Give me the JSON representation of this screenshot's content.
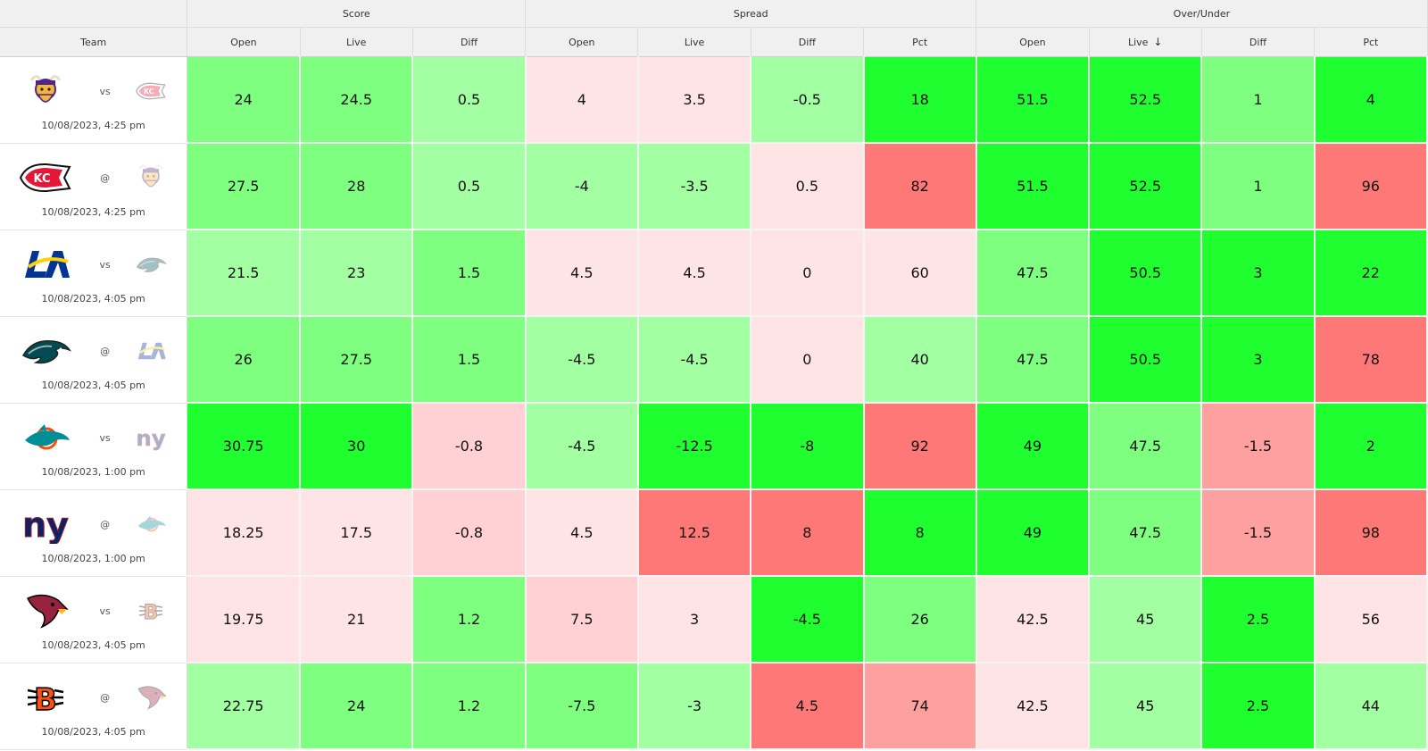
{
  "header": {
    "groups": [
      "Score",
      "Spread",
      "Over/Under"
    ],
    "columns": [
      "Team",
      "Open",
      "Live",
      "Diff",
      "Open",
      "Live",
      "Diff",
      "Pct",
      "Open",
      "Live",
      "Diff",
      "Pct"
    ],
    "sorted_column": "over_under_live",
    "sort_direction": "descending",
    "sort_icon": "arrow-down-icon"
  },
  "rows": [
    {
      "team_icon": "vikings-logo-icon",
      "opponent_icon": "chiefs-logo-icon",
      "separator": "vs",
      "date": "10/08/2023, 4:25 pm",
      "cells": [
        "24",
        "24.5",
        "0.5",
        "4",
        "3.5",
        "-0.5",
        "18",
        "51.5",
        "52.5",
        "1",
        "4"
      ],
      "colors": [
        "#7fff7f",
        "#7fff7f",
        "#a2ffa2",
        "#ffe4e6",
        "#ffe4e6",
        "#a2ffa2",
        "#1fff2f",
        "#1fff2f",
        "#1fff2f",
        "#7fff7f",
        "#1fff2f"
      ]
    },
    {
      "team_icon": "chiefs-logo-icon",
      "opponent_icon": "vikings-logo-icon",
      "separator": "@",
      "date": "10/08/2023, 4:25 pm",
      "cells": [
        "27.5",
        "28",
        "0.5",
        "-4",
        "-3.5",
        "0.5",
        "82",
        "51.5",
        "52.5",
        "1",
        "96"
      ],
      "colors": [
        "#7fff7f",
        "#7fff7f",
        "#a2ffa2",
        "#a2ffa2",
        "#a2ffa2",
        "#ffe4e6",
        "#ff7878",
        "#1fff2f",
        "#1fff2f",
        "#7fff7f",
        "#ff7878"
      ]
    },
    {
      "team_icon": "rams-logo-icon",
      "opponent_icon": "eagles-logo-icon",
      "separator": "vs",
      "date": "10/08/2023, 4:05 pm",
      "cells": [
        "21.5",
        "23",
        "1.5",
        "4.5",
        "4.5",
        "0",
        "60",
        "47.5",
        "50.5",
        "3",
        "22"
      ],
      "colors": [
        "#a2ffa2",
        "#a2ffa2",
        "#7fff7f",
        "#ffe4e6",
        "#ffe4e6",
        "#ffe4e6",
        "#ffe4e6",
        "#7fff7f",
        "#1fff2f",
        "#1fff2f",
        "#1fff2f"
      ]
    },
    {
      "team_icon": "eagles-logo-icon",
      "opponent_icon": "rams-logo-icon",
      "separator": "@",
      "date": "10/08/2023, 4:05 pm",
      "cells": [
        "26",
        "27.5",
        "1.5",
        "-4.5",
        "-4.5",
        "0",
        "40",
        "47.5",
        "50.5",
        "3",
        "78"
      ],
      "colors": [
        "#7fff7f",
        "#7fff7f",
        "#7fff7f",
        "#a2ffa2",
        "#a2ffa2",
        "#ffe4e6",
        "#a2ffa2",
        "#7fff7f",
        "#1fff2f",
        "#1fff2f",
        "#ff7878"
      ]
    },
    {
      "team_icon": "dolphins-logo-icon",
      "opponent_icon": "giants-logo-icon",
      "separator": "vs",
      "date": "10/08/2023, 1:00 pm",
      "cells": [
        "30.75",
        "30",
        "-0.8",
        "-4.5",
        "-12.5",
        "-8",
        "92",
        "49",
        "47.5",
        "-1.5",
        "2"
      ],
      "colors": [
        "#1fff2f",
        "#1fff2f",
        "#ffd0d4",
        "#a2ffa2",
        "#1fff2f",
        "#1fff2f",
        "#ff7878",
        "#1fff2f",
        "#7fff7f",
        "#ffa0a0",
        "#1fff2f"
      ]
    },
    {
      "team_icon": "giants-logo-icon",
      "opponent_icon": "dolphins-logo-icon",
      "separator": "@",
      "date": "10/08/2023, 1:00 pm",
      "cells": [
        "18.25",
        "17.5",
        "-0.8",
        "4.5",
        "12.5",
        "8",
        "8",
        "49",
        "47.5",
        "-1.5",
        "98"
      ],
      "colors": [
        "#ffe4e6",
        "#ffe4e6",
        "#ffd0d4",
        "#ffe4e6",
        "#ff7878",
        "#ff7878",
        "#1fff2f",
        "#1fff2f",
        "#7fff7f",
        "#ffa0a0",
        "#ff7878"
      ]
    },
    {
      "team_icon": "cardinals-logo-icon",
      "opponent_icon": "bengals-logo-icon",
      "separator": "vs",
      "date": "10/08/2023, 4:05 pm",
      "cells": [
        "19.75",
        "21",
        "1.2",
        "7.5",
        "3",
        "-4.5",
        "26",
        "42.5",
        "45",
        "2.5",
        "56"
      ],
      "colors": [
        "#ffe4e6",
        "#ffe4e6",
        "#7fff7f",
        "#ffd0d4",
        "#ffe4e6",
        "#1fff2f",
        "#7fff7f",
        "#ffe4e6",
        "#a2ffa2",
        "#1fff2f",
        "#ffe4e6"
      ]
    },
    {
      "team_icon": "bengals-logo-icon",
      "opponent_icon": "cardinals-logo-icon",
      "separator": "@",
      "date": "10/08/2023, 4:05 pm",
      "cells": [
        "22.75",
        "24",
        "1.2",
        "-7.5",
        "-3",
        "4.5",
        "74",
        "42.5",
        "45",
        "2.5",
        "44"
      ],
      "colors": [
        "#a2ffa2",
        "#7fff7f",
        "#7fff7f",
        "#7fff7f",
        "#a2ffa2",
        "#ff7878",
        "#ffa0a0",
        "#ffe4e6",
        "#a2ffa2",
        "#1fff2f",
        "#a2ffa2"
      ]
    }
  ]
}
